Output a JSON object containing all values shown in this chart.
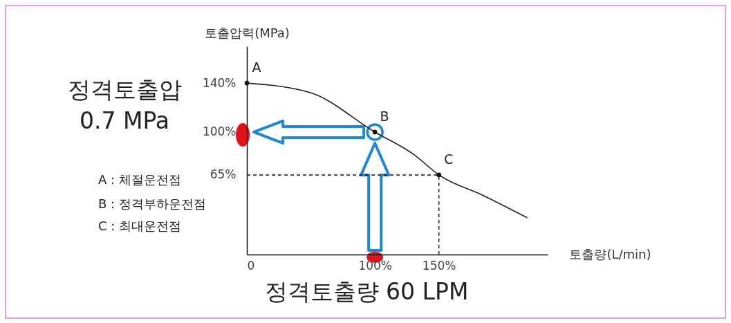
{
  "chart_data": {
    "type": "line",
    "xlabel": "토출량(L/min)",
    "ylabel": "토출압력(MPa)",
    "xlim": [
      0,
      235
    ],
    "ylim": [
      0,
      170
    ],
    "xticks": [
      {
        "value": 0,
        "label": "0"
      },
      {
        "value": 100,
        "label": "100%"
      },
      {
        "value": 150,
        "label": "150%"
      }
    ],
    "yticks": [
      {
        "value": 140,
        "label": "140%"
      },
      {
        "value": 100,
        "label": "100%"
      },
      {
        "value": 65,
        "label": "65%"
      }
    ],
    "grid": false,
    "series": [
      {
        "color": "#222222",
        "x": [
          0,
          50,
          100,
          130,
          150,
          185,
          219
        ],
        "values": [
          140,
          132,
          100,
          82,
          65,
          48,
          30
        ]
      },
      {
        "type": "scatter",
        "color": "#111111",
        "marker": "circle",
        "x": [
          0,
          100,
          150
        ],
        "values": [
          140,
          100,
          65
        ]
      }
    ],
    "ref_lines": [
      {
        "axis": "y",
        "value": 65,
        "color": "#111111",
        "line_style": "dashed"
      },
      {
        "axis": "x",
        "value": 150,
        "color": "#111111",
        "line_style": "dashed"
      }
    ],
    "annotations": [
      {
        "text": "A",
        "x": 0,
        "y": 140
      },
      {
        "text": "B",
        "x": 100,
        "y": 100
      },
      {
        "text": "C",
        "x": 150,
        "y": 65
      },
      "정격토출압\n0.7 MPa",
      "A : 체절운전점",
      "B : 정격부하운전점",
      "C : 최대운전점",
      "정격토출량 60 LPM"
    ]
  }
}
